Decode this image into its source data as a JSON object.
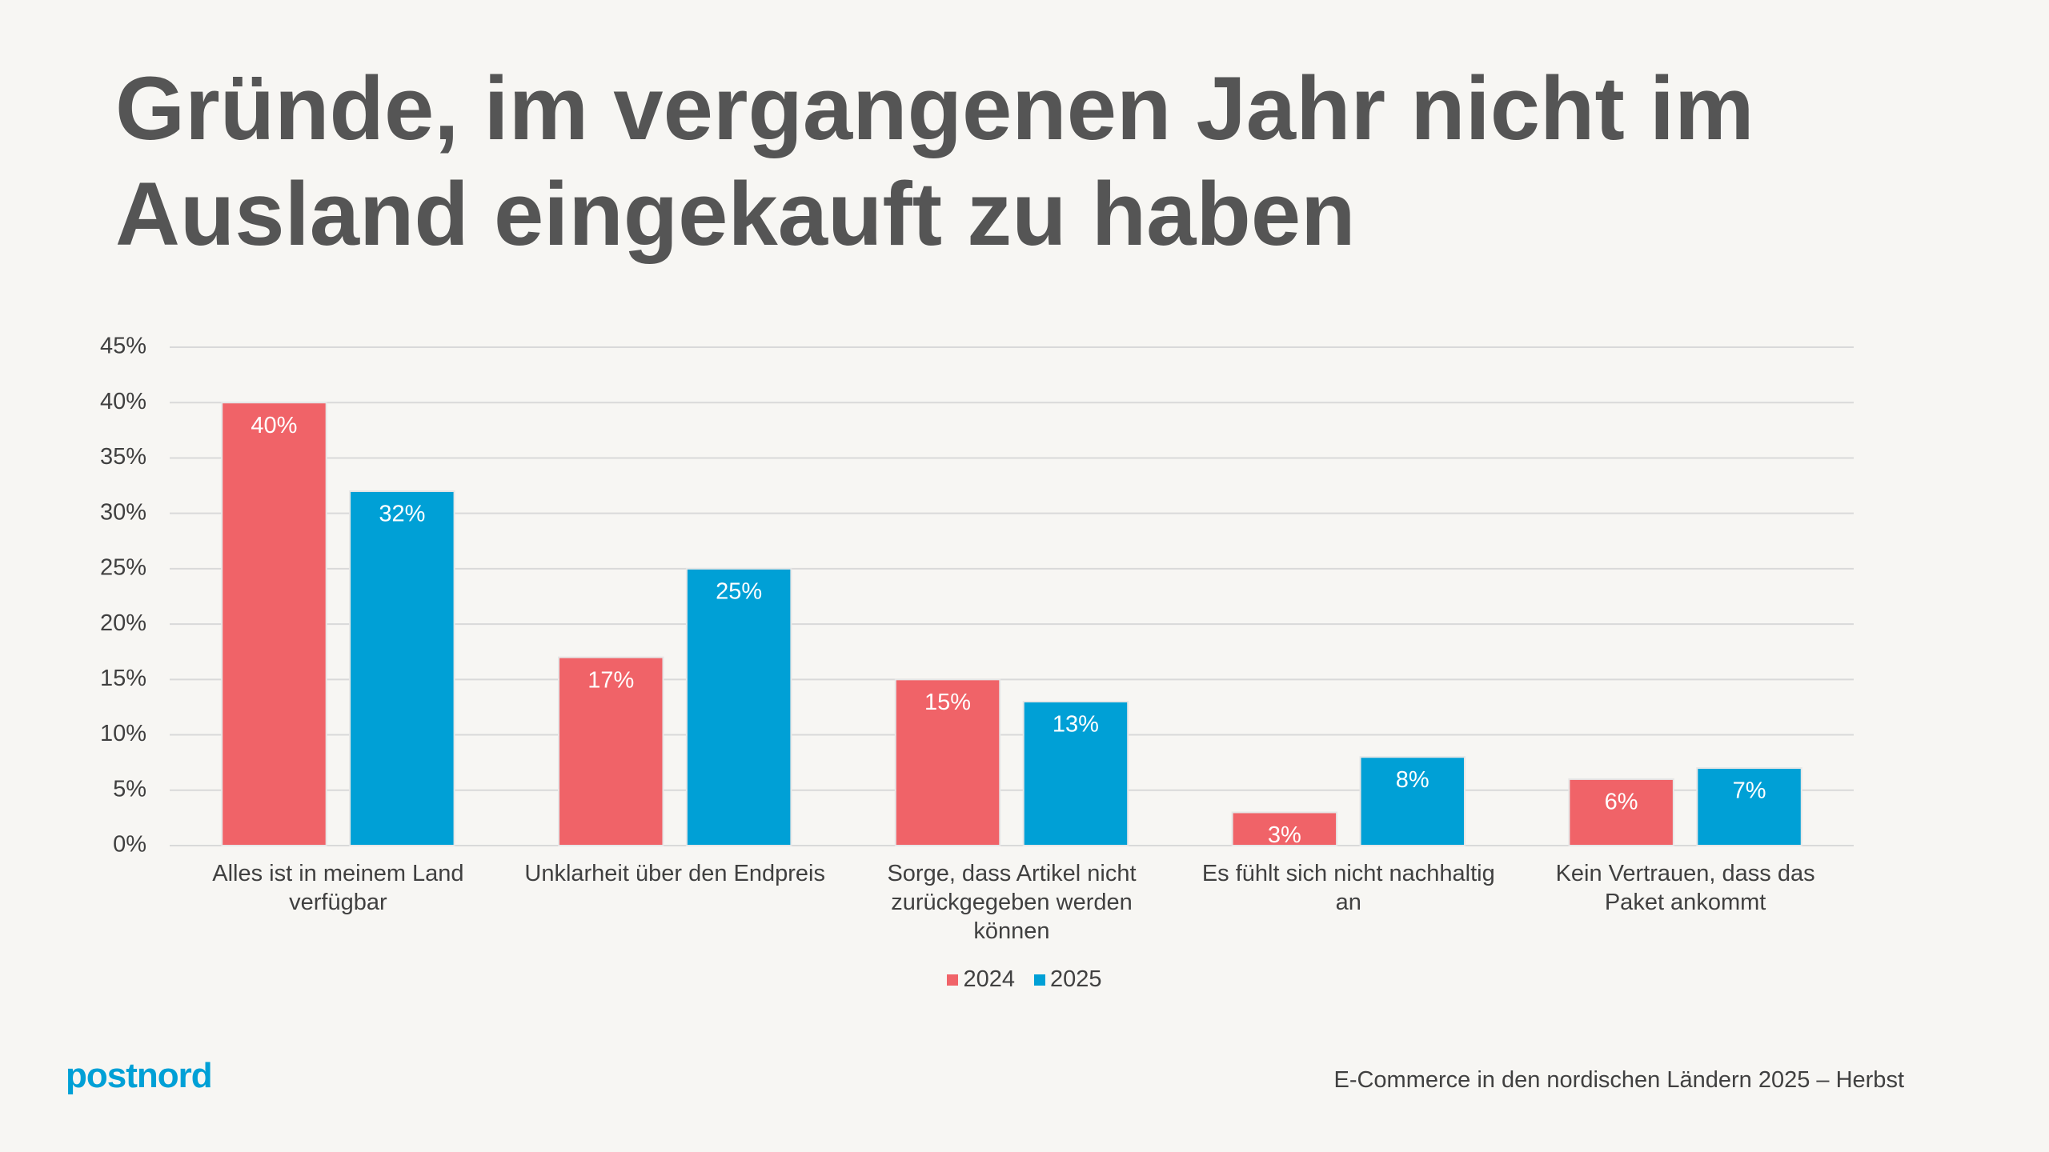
{
  "chart_data": {
    "type": "bar",
    "title": "Gründe, im vergangenen Jahr nicht im Ausland eingekauft zu haben",
    "categories": [
      "Alles ist in meinem Land verfügbar",
      "Unklarheit über den Endpreis",
      "Sorge, dass Artikel nicht zurückgegeben werden können",
      "Es fühlt sich nicht nachhaltig an",
      "Kein Vertrauen, dass das Paket ankommt"
    ],
    "series": [
      {
        "name": "2024",
        "color": "#f06368",
        "values": [
          40,
          17,
          15,
          3,
          6
        ],
        "value_labels": [
          "40%",
          "17%",
          "15%",
          "3%",
          "6%"
        ]
      },
      {
        "name": "2025",
        "color": "#00a0d6",
        "values": [
          32,
          25,
          13,
          8,
          7
        ],
        "value_labels": [
          "32%",
          "25%",
          "13%",
          "8%",
          "7%"
        ]
      }
    ],
    "ylim": [
      0,
      45
    ],
    "yticks": [
      {
        "value": 0,
        "label": "0%"
      },
      {
        "value": 5,
        "label": "5%"
      },
      {
        "value": 10,
        "label": "10%"
      },
      {
        "value": 15,
        "label": "15%"
      },
      {
        "value": 20,
        "label": "20%"
      },
      {
        "value": 25,
        "label": "25%"
      },
      {
        "value": 30,
        "label": "30%"
      },
      {
        "value": 35,
        "label": "35%"
      },
      {
        "value": 40,
        "label": "40%"
      },
      {
        "value": 45,
        "label": "45%"
      }
    ],
    "grid": true,
    "legend": "bottom"
  },
  "footer": {
    "logo": "postnord",
    "source": "E-Commerce in den nordischen Ländern 2025 – Herbst"
  }
}
